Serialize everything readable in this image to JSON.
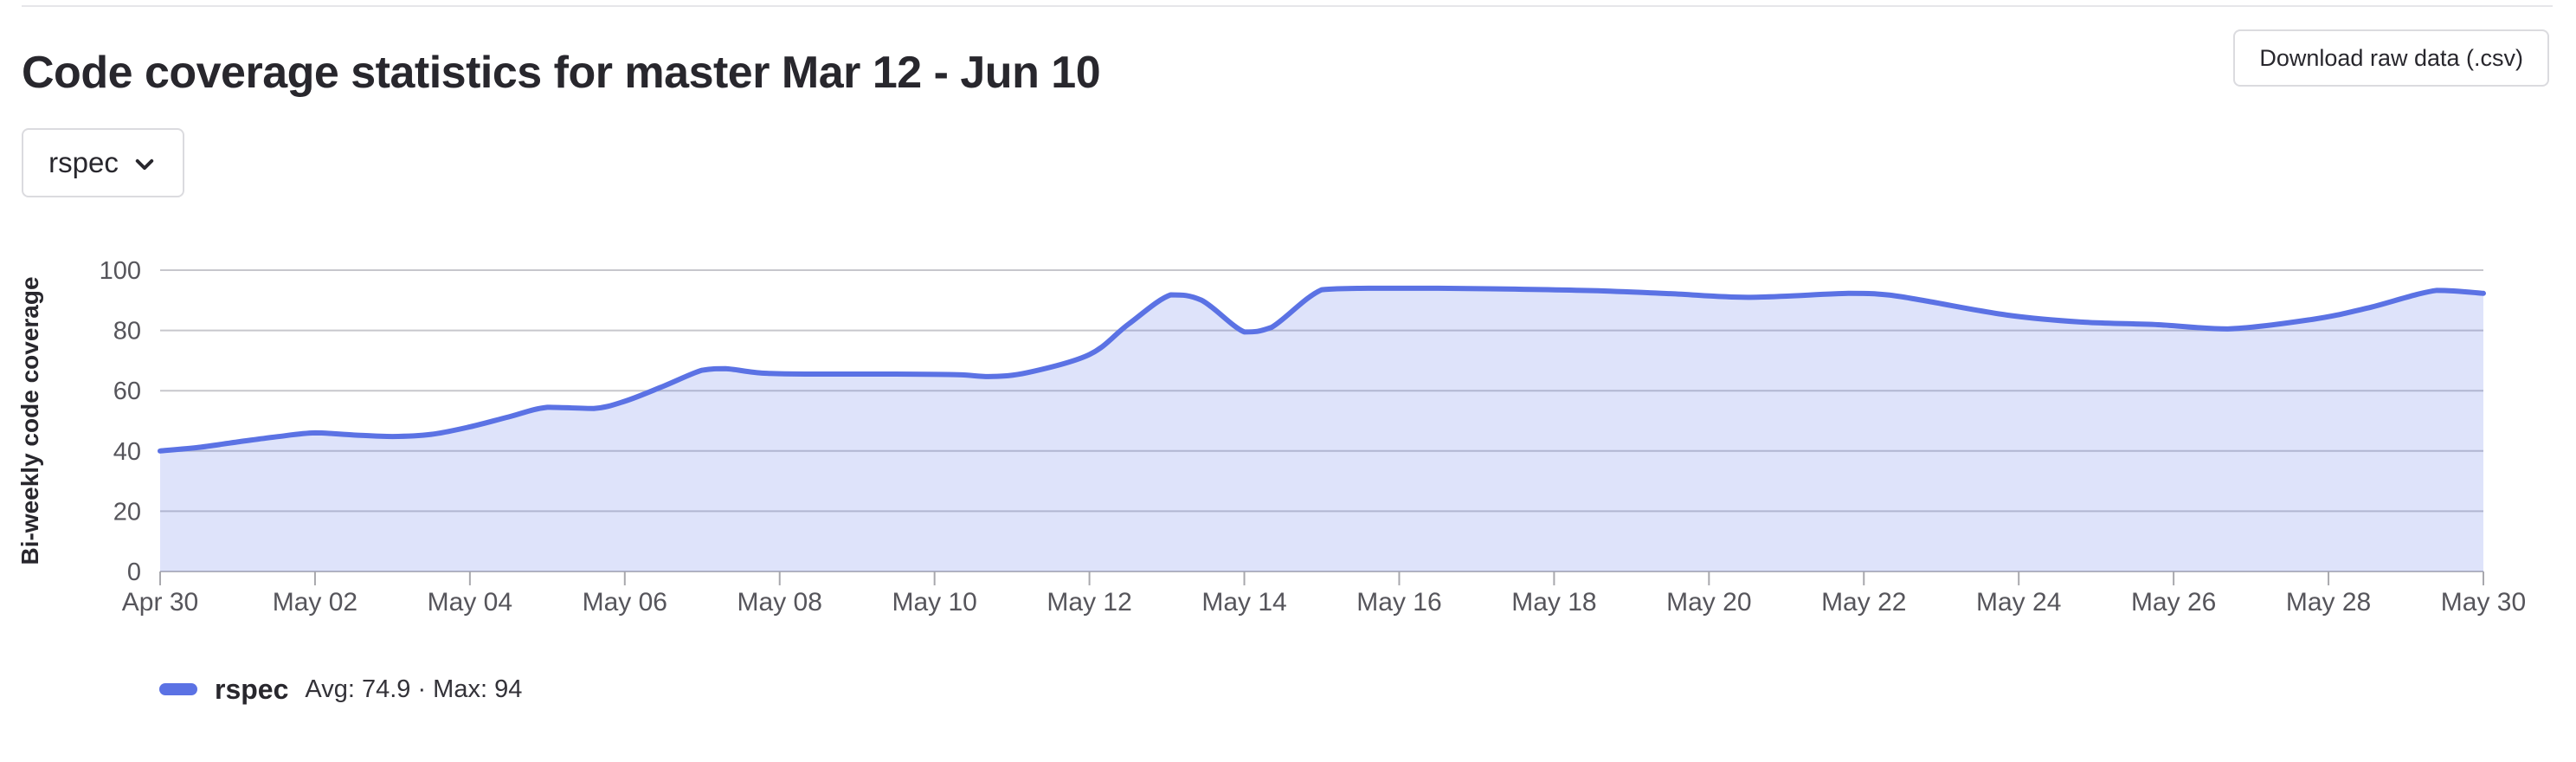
{
  "header": {
    "title": "Code coverage statistics for master Mar 12 - Jun 10",
    "download_button_label": "Download raw data (.csv)"
  },
  "filter": {
    "selected_job": "rspec",
    "chevron_icon": "chevron-down"
  },
  "chart_data": {
    "type": "area",
    "title": "",
    "xlabel": "",
    "ylabel": "Bi-weekly code coverage",
    "ylim": [
      0,
      100
    ],
    "y_ticks": [
      0,
      20,
      40,
      60,
      80,
      100
    ],
    "grid": true,
    "legend_position": "bottom-left",
    "x_unit": "days since Apr 30",
    "x_ticks": [
      {
        "day": 0,
        "label": "Apr 30"
      },
      {
        "day": 2,
        "label": "May 02"
      },
      {
        "day": 4,
        "label": "May 04"
      },
      {
        "day": 6,
        "label": "May 06"
      },
      {
        "day": 8,
        "label": "May 08"
      },
      {
        "day": 10,
        "label": "May 10"
      },
      {
        "day": 12,
        "label": "May 12"
      },
      {
        "day": 14,
        "label": "May 14"
      },
      {
        "day": 16,
        "label": "May 16"
      },
      {
        "day": 18,
        "label": "May 18"
      },
      {
        "day": 20,
        "label": "May 20"
      },
      {
        "day": 22,
        "label": "May 22"
      },
      {
        "day": 24,
        "label": "May 24"
      },
      {
        "day": 26,
        "label": "May 26"
      },
      {
        "day": 28,
        "label": "May 28"
      },
      {
        "day": 30,
        "label": "May 30"
      }
    ],
    "series": [
      {
        "name": "rspec",
        "stats_label": "Avg: 74.9 · Max: 94",
        "avg": 74.9,
        "max": 94,
        "color": "#5b72e4",
        "fill_color": "rgba(91,114,228,0.20)",
        "points": [
          [
            0,
            40
          ],
          [
            0.5,
            41.2
          ],
          [
            1,
            43
          ],
          [
            1.5,
            44.7
          ],
          [
            2,
            46
          ],
          [
            2.5,
            45.3
          ],
          [
            3,
            44.8
          ],
          [
            3.5,
            45.5
          ],
          [
            4,
            48
          ],
          [
            4.5,
            51.3
          ],
          [
            5,
            54.5
          ],
          [
            5.6,
            54.1
          ],
          [
            6,
            56.5
          ],
          [
            6.5,
            61.5
          ],
          [
            7,
            66.8
          ],
          [
            7.3,
            67.3
          ],
          [
            7.8,
            65.8
          ],
          [
            8.5,
            65.5
          ],
          [
            9.5,
            65.5
          ],
          [
            10.3,
            65.3
          ],
          [
            10.7,
            64.7
          ],
          [
            11.2,
            66
          ],
          [
            12,
            72
          ],
          [
            12.5,
            82
          ],
          [
            13.05,
            91.8
          ],
          [
            13.45,
            90
          ],
          [
            14,
            79.5
          ],
          [
            14.35,
            81
          ],
          [
            15,
            93.5
          ],
          [
            15.6,
            94
          ],
          [
            16.5,
            94
          ],
          [
            17.5,
            93.7
          ],
          [
            18.5,
            93.2
          ],
          [
            19.5,
            92.2
          ],
          [
            20.5,
            91
          ],
          [
            21.8,
            92.3
          ],
          [
            22.3,
            91.8
          ],
          [
            22.8,
            89.8
          ],
          [
            23.85,
            85.1
          ],
          [
            24.8,
            82.8
          ],
          [
            25.8,
            81.9
          ],
          [
            26.7,
            80.5
          ],
          [
            27.8,
            83.7
          ],
          [
            28.5,
            87.4
          ],
          [
            29.4,
            93.3
          ],
          [
            30,
            92.3
          ]
        ]
      }
    ]
  },
  "colors": {
    "text": "#28272d",
    "axis_label": "#56555b",
    "grid_line": "#c7c7cc",
    "axis_line": "#b9b9bf",
    "tick": "#a8a8ad",
    "border": "#dbdbdf",
    "divider": "#e6e6e9",
    "accent": "#5b72e4"
  }
}
